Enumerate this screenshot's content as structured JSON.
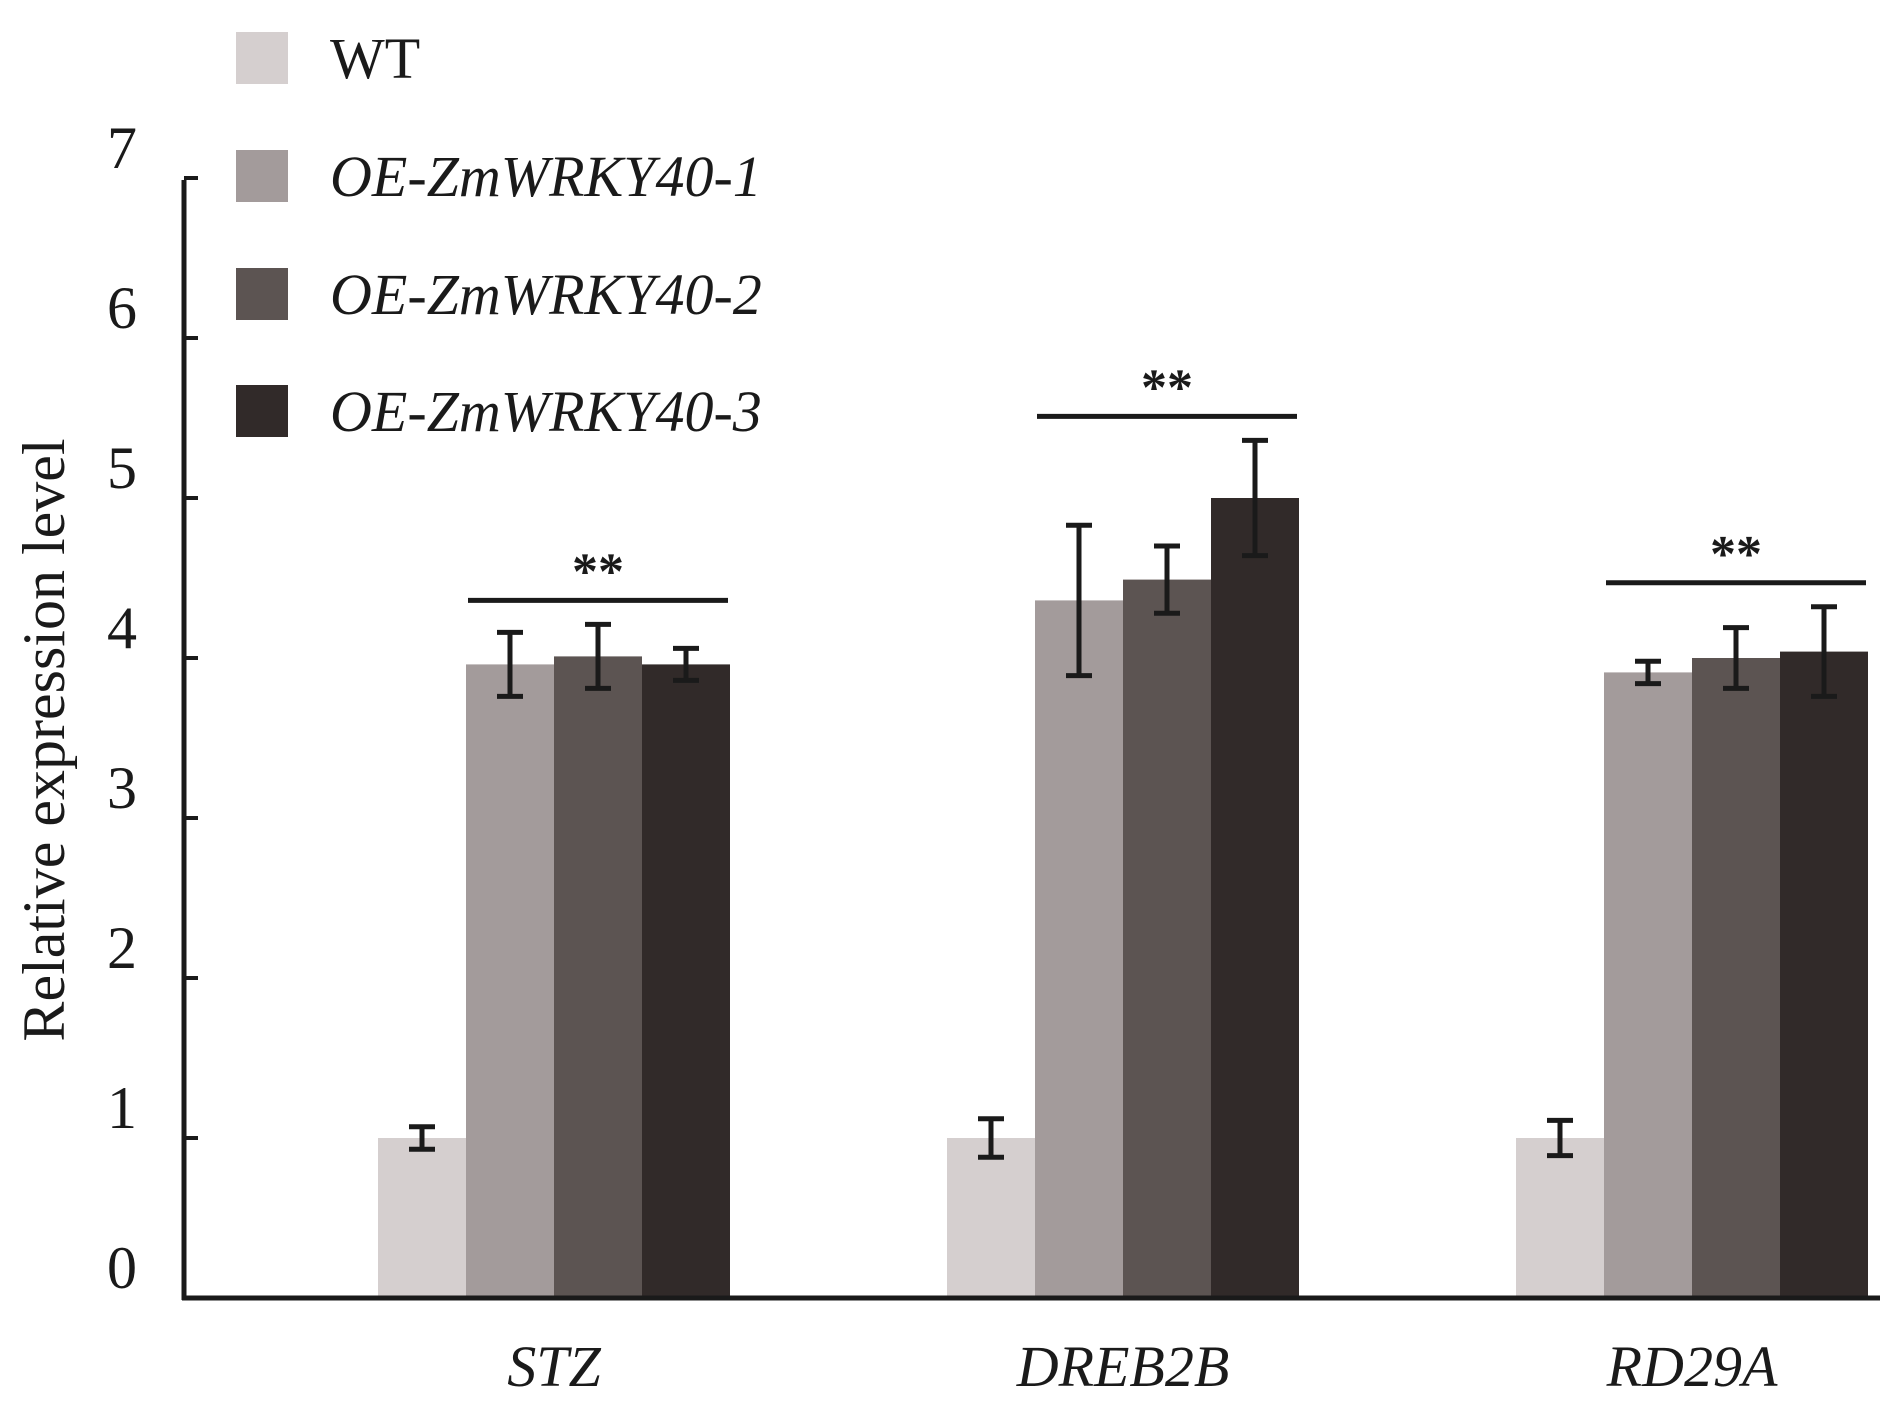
{
  "chart_data": {
    "type": "bar",
    "title": "",
    "xlabel": "",
    "ylabel": "Relative expression level",
    "ylim": [
      0,
      7
    ],
    "yticks": [
      0,
      1,
      2,
      3,
      4,
      5,
      6,
      7
    ],
    "categories": [
      "STZ",
      "DREB2B",
      "RD29A"
    ],
    "series": [
      {
        "name": "WT",
        "color": "#d5cfcf",
        "italic": false,
        "values": [
          1.0,
          1.0,
          1.0
        ],
        "errors": [
          0.07,
          0.12,
          0.11
        ]
      },
      {
        "name": "OE-ZmWRKY40-1",
        "color": "#a39b9b",
        "italic": true,
        "values": [
          3.96,
          4.36,
          3.91
        ],
        "errors": [
          0.2,
          0.47,
          0.07
        ]
      },
      {
        "name": "OE-ZmWRKY40-2",
        "color": "#5c5452",
        "italic": true,
        "values": [
          4.01,
          4.49,
          4.0
        ],
        "errors": [
          0.2,
          0.21,
          0.19
        ]
      },
      {
        "name": "OE-ZmWRKY40-3",
        "color": "#312a29",
        "italic": true,
        "values": [
          3.96,
          5.0,
          4.04
        ],
        "errors": [
          0.1,
          0.36,
          0.28
        ]
      }
    ],
    "significance": [
      {
        "category": "STZ",
        "label": "**"
      },
      {
        "category": "DREB2B",
        "label": "**"
      },
      {
        "category": "RD29A",
        "label": "**"
      }
    ],
    "legend_position": "top-left",
    "grid": false
  }
}
